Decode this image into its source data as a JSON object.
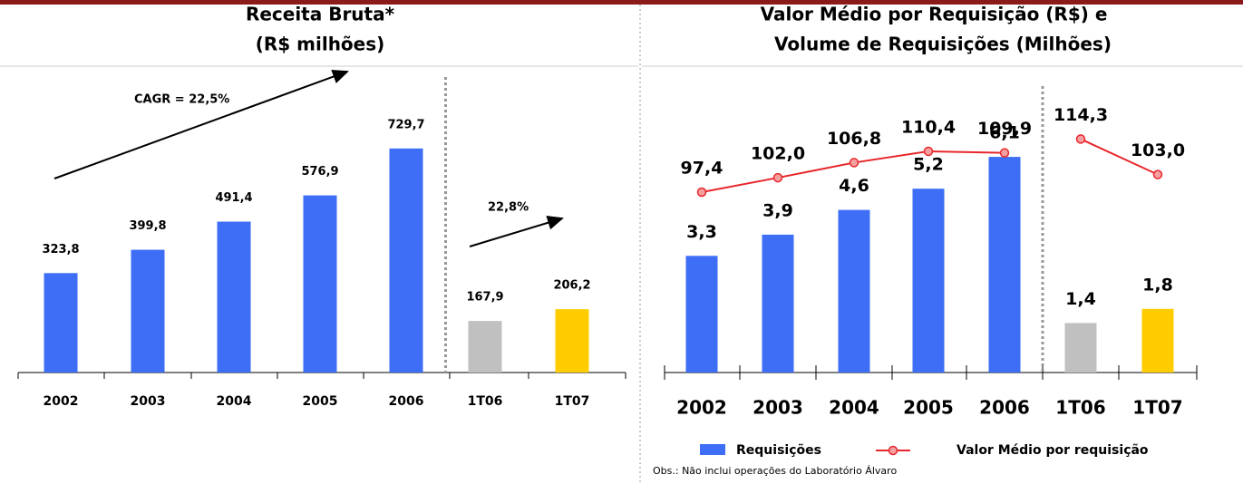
{
  "chart_data": [
    {
      "type": "bar",
      "title": [
        "Receita Bruta*",
        "(R$ milhões)"
      ],
      "categories": [
        "2002",
        "2003",
        "2004",
        "2005",
        "2006",
        "1T06",
        "1T07"
      ],
      "values": [
        323.8,
        399.8,
        491.4,
        576.9,
        729.7,
        167.9,
        206.2
      ],
      "value_labels": [
        "323,8",
        "399,8",
        "491,4",
        "576,9",
        "729,7",
        "167,9",
        "206,2"
      ],
      "colors": [
        "#3d6ef5",
        "#3d6ef5",
        "#3d6ef5",
        "#3d6ef5",
        "#3d6ef5",
        "#c0c0c0",
        "#ffcc00"
      ],
      "ylim": [
        0,
        800
      ],
      "annotations": [
        "CAGR = 22,5%",
        "22,8%"
      ],
      "divider_index": 5
    },
    {
      "type": "bar_line",
      "title": [
        "Valor Médio por Requisição (R$) e",
        "Volume de Requisições (Milhões)"
      ],
      "categories": [
        "2002",
        "2003",
        "2004",
        "2005",
        "2006",
        "1T06",
        "1T07"
      ],
      "series": [
        {
          "name": "Requisições",
          "color": "#3d6ef5",
          "colors": [
            "#3d6ef5",
            "#3d6ef5",
            "#3d6ef5",
            "#3d6ef5",
            "#3d6ef5",
            "#c0c0c0",
            "#ffcc00"
          ],
          "values": [
            3.3,
            3.9,
            4.6,
            5.2,
            6.1,
            1.4,
            1.8
          ],
          "value_labels": [
            "3,3",
            "3,9",
            "4,6",
            "5,2",
            "6,1",
            "1,4",
            "1,8"
          ]
        },
        {
          "name": "Valor Médio por requisição",
          "color": "#e8262b",
          "axis": "y2",
          "values": [
            97.4,
            102.0,
            106.8,
            110.4,
            109.9,
            114.3,
            103.0
          ],
          "value_labels": [
            "97,4",
            "102,0",
            "106,8",
            "110,4",
            "109,9",
            "114,3",
            "103,0"
          ]
        }
      ],
      "ylim": [
        0,
        8
      ],
      "y2lim": [
        40,
        130
      ],
      "note": "Obs.: Não inclui operações do Laboratório Álvaro",
      "divider_index": 5
    }
  ]
}
